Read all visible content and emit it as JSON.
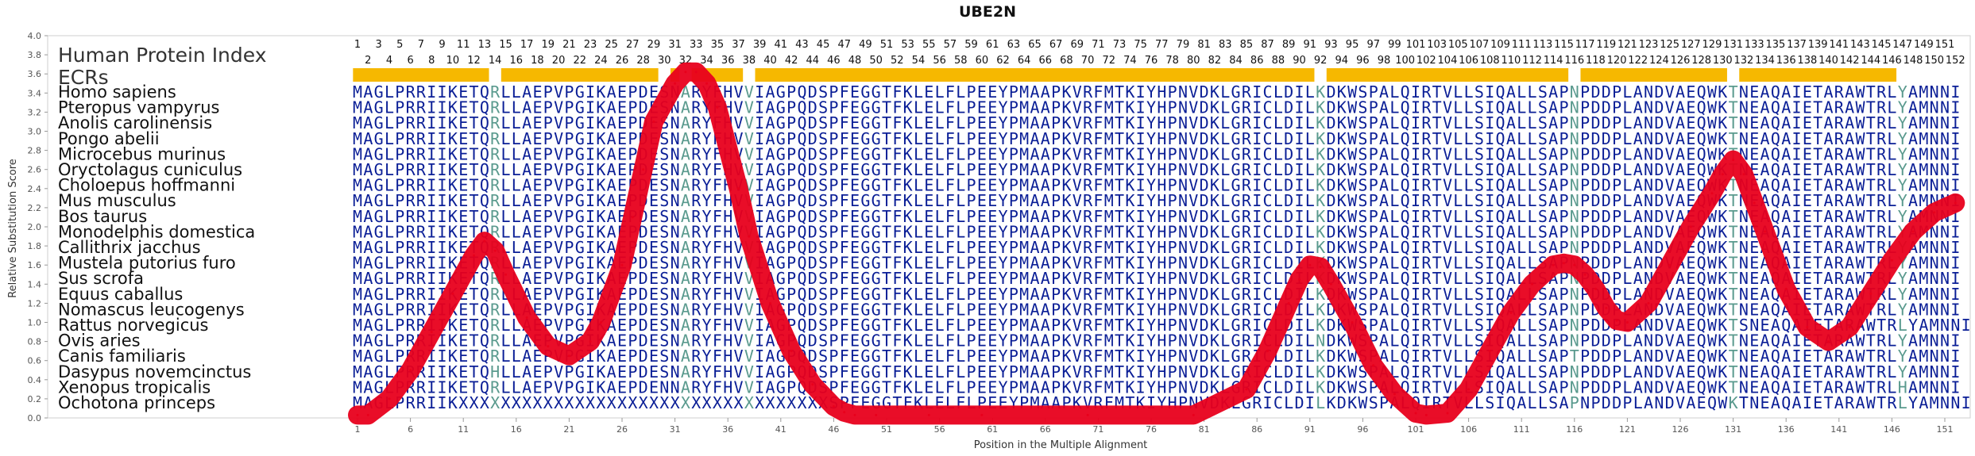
{
  "chart_data": {
    "type": "line",
    "title": "UBE2N",
    "xlabel": "Position in the Multiple Alignment",
    "ylabel": "Relative Substitution Score",
    "xlim": [
      1,
      152
    ],
    "ylim": [
      0,
      4.0
    ],
    "x_ticks": [
      1,
      6,
      11,
      16,
      21,
      26,
      31,
      36,
      41,
      46,
      51,
      56,
      61,
      66,
      71,
      76,
      81,
      86,
      91,
      96,
      101,
      106,
      111,
      116,
      121,
      126,
      131,
      136,
      141,
      146,
      151
    ],
    "y_ticks": [
      "0.0",
      "0.2",
      "0.4",
      "0.6",
      "0.8",
      "1.0",
      "1.2",
      "1.4",
      "1.6",
      "1.8",
      "2.0",
      "2.2",
      "2.4",
      "2.6",
      "2.8",
      "3.0",
      "3.2",
      "3.4",
      "3.6",
      "3.8",
      "4.0"
    ],
    "labels": {
      "index": "Human Protein Index",
      "ecrs": "ECRs"
    },
    "position_row_odd": [
      "1",
      "3",
      "5",
      "7",
      "9",
      "11",
      "13",
      "15",
      "17",
      "19",
      "21",
      "23",
      "25",
      "27",
      "29",
      "31",
      "33",
      "35",
      "37",
      "39",
      "41",
      "43",
      "45",
      "47",
      "49",
      "51",
      "53",
      "55",
      "57",
      "59",
      "61",
      "63",
      "65",
      "67",
      "69",
      "71",
      "73",
      "75",
      "77",
      "79",
      "81",
      "83",
      "85",
      "87",
      "89",
      "91",
      "93",
      "95",
      "97",
      "99",
      "101",
      "103",
      "105",
      "107",
      "109",
      "111",
      "113",
      "115",
      "117",
      "119",
      "121",
      "123",
      "125",
      "127",
      "129",
      "131",
      "133",
      "135",
      "137",
      "139",
      "141",
      "143",
      "145",
      "147",
      "149",
      "151"
    ],
    "position_row_even": [
      "2",
      "4",
      "6",
      "8",
      "10",
      "12",
      "14",
      "16",
      "18",
      "20",
      "22",
      "24",
      "26",
      "28",
      "30",
      "32",
      "34",
      "36",
      "38",
      "40",
      "42",
      "44",
      "46",
      "48",
      "50",
      "52",
      "54",
      "56",
      "58",
      "60",
      "62",
      "64",
      "66",
      "68",
      "70",
      "72",
      "74",
      "76",
      "78",
      "80",
      "82",
      "84",
      "86",
      "88",
      "90",
      "92",
      "94",
      "96",
      "98",
      "100",
      "102",
      "104",
      "106",
      "108",
      "110",
      "112",
      "114",
      "116",
      "118",
      "120",
      "122",
      "124",
      "126",
      "128",
      "130",
      "132",
      "134",
      "136",
      "138",
      "140",
      "142",
      "144",
      "146",
      "148",
      "150",
      "152"
    ],
    "ecr_segments": [
      [
        1,
        13
      ],
      [
        15,
        29
      ],
      [
        31,
        31
      ],
      [
        33,
        37
      ],
      [
        39,
        91
      ],
      [
        93,
        115
      ],
      [
        117,
        130
      ],
      [
        132,
        146
      ]
    ],
    "highlight_columns": [
      14,
      32,
      38,
      92,
      116,
      131,
      147
    ],
    "species": [
      {
        "name": "Homo sapiens",
        "seq": "MAGLPRRIIKETQRLLAEPVPGIKAEPDESNARYFHVVIAGPQDSPFEGGTFKLELFLPEEYPMAAPKVRFMTKIYHPNVDKLGRICLDILKDKWSPALQIRTVLLSIQALLSAPNPDDPLANDVAEQWKTNEAQAIETARAWTRLYAMNNI"
      },
      {
        "name": "Pteropus vampyrus",
        "seq": "MAGLPRRIIKETQRLLAEPVPGIKAEPDESNARYFHVVIAGPQDSPFEGGTFKLELFLPEEYPMAAPKVRFMTKIYHPNVDKLGRICLDILKDKWSPALQIRTVLLSIQALLSAPNPDDPLANDVAEQWKTNEAQAIETARAWTRLYAMNNI"
      },
      {
        "name": "Anolis carolinensis",
        "seq": "MAGLPRRIIKETQRLLAEPVPGIKAEPDESNARYFHVVIAGPQDSPFEGGTFKLELFLPEEYPMAAPKVRFMTKIYHPNVDKLGRICLDILKDKWSPALQIRTVLLSIQALLSAPNPDDPLANDVAEQWKTNEAQAIETARAWTRLYAMNNI"
      },
      {
        "name": "Pongo abelii",
        "seq": "MAGLPRRIIKETQRLLAEPVPGIKAEPDESNARYFHVVIAGPQDSPFEGGTFKLELFLPEEYPMAAPKVRFMTKIYHPNVDKLGRICLDILKDKWSPALQIRTVLLSIQALLSAPNPDDPLANDVAEQWKTNEAQAIETARAWTRLYAMNNI"
      },
      {
        "name": "Microcebus murinus",
        "seq": "MAGLPRRIIKETQRLLAEPVPGIKAEPDESNARYFHVVIAGPQDSPFEGGTFKLELFLPEEYPMAAPKVRFMTKIYHPNVDKLGRICLDILKDKWSPALQIRTVLLSIQALLSAPNPDDPLANDVAEQWKTNEAQAIETARAWTRLYAMNNI"
      },
      {
        "name": "Oryctolagus cuniculus",
        "seq": "MAGLPRRIIKETQRLLAEPVPGIKAEPDESNARYFHVVIAGPQDSPFEGGTFKLELFLPEEYPMAAPKVRFMTKIYHPNVDKLGRICLDILKDKWSPALQIRTVLLSIQALLSAPNPDDPLANDVAEQWKTNEAQAIETARAWTRLYAMNNI"
      },
      {
        "name": "Choloepus hoffmanni",
        "seq": "MAGLPRRIIKETQRLLAEPVPGIKAEPDESNARYFHVVIAGPQDSPFEGGTFKLELFLPEEYPMAAPKVRFMTKIYHPNVDKLGRICLDILKDKWSPALQIRTVLLSIQALLSAPNPDDPLANDVAEQWKTNEAQAIETARAWTRLYAMNNI"
      },
      {
        "name": "Mus musculus",
        "seq": "MAGLPRRIIKETQRLLAEPVPGIKAEPDESNARYFHVVIAGPQDSPFEGGTFKLELFLPEEYPMAAPKVRFMTKIYHPNVDKLGRICLDILKDKWSPALQIRTVLLSIQALLSAPNPDDPLANDVAEQWKTNEAQAIETARAWTRLYAMNNI"
      },
      {
        "name": "Bos taurus",
        "seq": "MAGLPRRIIKETQRLLAEPVPGIKAEPDESNARYFHVVIAGPQDSPFEGGTFKLELFLPEEYPMAAPKVRFMTKIYHPNVDKLGRICLDILKDKWSPALQIRTVLLSIQALLSAPNPDDPLANDVAEQWKTNEAQAIETARAWTRLYAMNNI"
      },
      {
        "name": "Monodelphis domestica",
        "seq": "MAGLPRRIIKETQRLLAEPVPGIKAEPDESNARYFHVVIAGPQDSPFEGGTFKLELFLPEEYPMAAPKVRFMTKIYHPNVDKLGRICLDILKDKWSPALQIRTVLLSIQALLSAPNPDDPLANDVAEQWKTNEAQAIETARAWTRLYAMNNI"
      },
      {
        "name": "Callithrix jacchus",
        "seq": "MAGLPRRIIKETQRLLAEPVPGIKAEPDESNARYFHVVIAGPQDSPFEGGTFKLELFLPEEYPMAAPKVRFMTKIYHPNVDKLGRICLDILKDKWSPALQIRTVLLSIQALLSAPNPDDPLANDVAEQWKTNEAQAIETARAWTRLYAMNNI"
      },
      {
        "name": "Mustela putorius furo",
        "seq": "MAGLPRRIIKETQRLLAEPVPGIKAEPDESNARYFHVVIAGPQDSPFEGGTFKLELFLPEEYPMAAPKVRFMTKIYHPNVDKLGRICLDILKDKWSPALQIRTVLLSIQALLSAPNPDDPLANDVAEQWKTNEAQAIETARAWTRLYAMNNI"
      },
      {
        "name": "Sus scrofa",
        "seq": "MAGLPRRIIKETQRLLAEPVPGIKAEPDESNARYFHVVIAGPQDSPFEGGTFKLELFLPEEYPMAAPKVRFMTKIYHPNVDKLGRICLDILKDKWSPALQIRTVLLSIQALLSAPNPDDPLANDVAEQWKTNEAQAIETARAWTRLYAMNNI"
      },
      {
        "name": "Equus caballus",
        "seq": "MAGLPRRIIKETQRLLAEPVPGIKAEPDESNARYFHVVIAGPQDSPFEGGTFKLELFLPEEYPMAAPKVRFMTKIYHPNVDKLGRICLDILKDKWSPALQIRTVLLSIQALLSAPNPDDPLANDVAEQWKTNEAQAIETARAWTRLYAMNNI"
      },
      {
        "name": "Nomascus leucogenys",
        "seq": "MAGLPRRIIKETQRLLAEPVPGIKAEPDESNARYFHVVIAGPQDSPFEGGTFKLELFLPEEYPMAAPKVRFMTKIYHPNVDKLGRICLDILKDKWSPALQIRTVLLSIQALLSAPNPDDPLANDVAEQWKTNEAQAIETARAWTRLYAMNNI"
      },
      {
        "name": "Rattus norvegicus",
        "seq": "MAGLPRRIIKETQRLLAEPVPGIKAEPDESNARYFHVVIAGPQDSPFEGGTFKLELFLPEEYPMAAPKVRFMTKIYHPNVDKLGRICLDILKDKWSPALQIRTVLLSIQALLSAPNPDDPLANDVAEQWKTSNEAQAIETARAWTRLYAMNNI"
      },
      {
        "name": "Ovis aries",
        "seq": "MAGLPRRIIKETQRLLAEPVPGIKAEPDESNARYFHVVIAGPQDSPFEGGTFKLELFLPEEYPMAAPKVRFMTKIYHPNVDKLGRICLDILNDKWSPALQIRTVLLSIQALLSAPNPDDPLANDVAEQWKTNEAQAIETARAWTRLYAMNNI"
      },
      {
        "name": "Canis familiaris",
        "seq": "MAGLPRRIIKETQRLLAEPVPGIKAEPDESNARYFHVVIAGPQDSPFEGGTFKLELFLPEEYPMAAPKVRFMTKIYHPNVDKLGRICLDILKDKWSPALQIRTVLLSIQALLSAPTPDDPLANDVAEQWKTNEAQAIETARAWTRLYAMNNI"
      },
      {
        "name": "Dasypus novemcinctus",
        "seq": "MAGLPRRIIKETQHLLAEPVPGIKAEPDESNARYFHVVIAGPQDSPFEGGTFKLELFLPEEYPMAAPKVRFMTKIYHPNVDKLGRICLDILKDKWSPALQIRTVLLSIQALLSAPNPDDPLANDVAEQWKTNEAQAIETARAWTRLYAMNNI"
      },
      {
        "name": "Xenopus tropicalis",
        "seq": "MAGLPRRIIKETQRLLAEPVPGIKAEPDENNARYFHVVIAGPQDSPFEGGTFKLELFLPEEYPMAAPKVRFMTKIYHPNVDKLGRICLDILKDKWSPALQIRTVLLSIQALLSAPNPDDPLANDVAEQWKTNEAQAIETARAWTRLHAMNNI"
      },
      {
        "name": "Ochotona princeps",
        "seq": "MAGLPRRIIKXXXXXXXXXXXXXXXXXXXXXXXXXXXXXXXXXXXSPFEGGTFKLELFLPEEYPMAAPKVRFMTKIYHPNVDKLGRICLDILKDKWSPALQIRTVLLSIQALLSAPNPDDPLANDVAEQWKTNEAQAIETARAWTRLYAMNNI"
      }
    ],
    "series": [
      {
        "x": [
          1,
          2,
          4,
          6,
          8,
          10,
          12,
          13,
          14,
          15,
          17,
          19,
          21,
          23,
          24,
          26,
          27,
          28,
          29,
          31,
          32,
          33,
          34,
          35,
          37,
          38,
          40,
          42,
          44,
          46,
          47,
          48,
          50,
          55,
          60,
          70,
          80,
          85,
          87,
          89,
          90,
          91,
          92,
          93,
          95,
          97,
          99,
          101,
          102,
          104,
          106,
          108,
          110,
          112,
          114,
          115,
          116,
          117,
          118,
          119,
          120,
          121,
          123,
          125,
          127,
          129,
          130,
          131,
          132,
          133,
          134,
          136,
          138,
          140,
          142,
          144,
          146,
          148,
          150,
          152
        ],
        "y": [
          0.03,
          0.03,
          0.2,
          0.5,
          0.9,
          1.3,
          1.7,
          1.85,
          1.75,
          1.5,
          1.05,
          0.75,
          0.65,
          0.8,
          1.0,
          1.6,
          2.1,
          2.6,
          3.1,
          3.5,
          3.62,
          3.62,
          3.5,
          3.25,
          2.4,
          1.9,
          1.2,
          0.7,
          0.35,
          0.12,
          0.06,
          0.03,
          0.03,
          0.03,
          0.03,
          0.03,
          0.03,
          0.3,
          0.7,
          1.2,
          1.45,
          1.6,
          1.58,
          1.4,
          1.0,
          0.55,
          0.25,
          0.05,
          0.03,
          0.05,
          0.3,
          0.7,
          1.1,
          1.4,
          1.6,
          1.62,
          1.6,
          1.5,
          1.35,
          1.15,
          1.02,
          1.0,
          1.2,
          1.6,
          2.0,
          2.35,
          2.55,
          2.7,
          2.55,
          2.25,
          1.95,
          1.35,
          0.95,
          0.8,
          0.95,
          1.3,
          1.65,
          1.95,
          2.15,
          2.25
        ]
      }
    ]
  }
}
